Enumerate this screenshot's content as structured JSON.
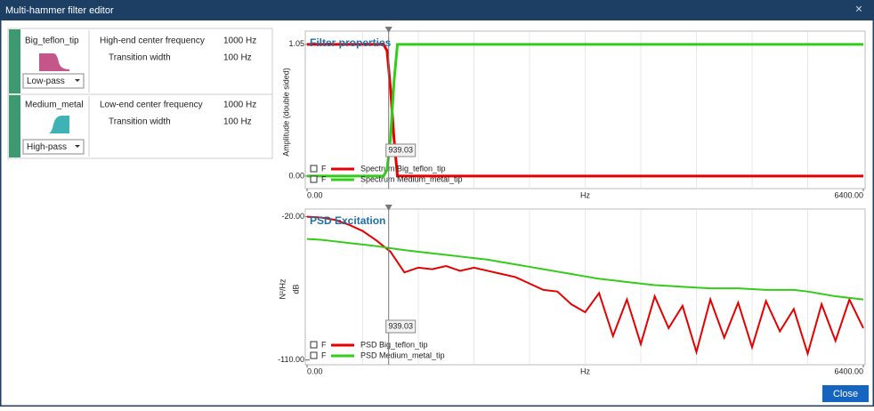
{
  "window": {
    "title": "Multi-hammer filter editor",
    "close_button": "Close"
  },
  "filters": [
    {
      "name": "Big_teflon_tip",
      "mode": "Low-pass",
      "params": [
        {
          "label": "High-end center frequency",
          "value": "1000 Hz"
        },
        {
          "label": "Transition width",
          "value": "100 Hz"
        }
      ]
    },
    {
      "name": "Medium_metal",
      "mode": "High-pass",
      "params": [
        {
          "label": "Low-end center frequency",
          "value": "1000 Hz"
        },
        {
          "label": "Transition width",
          "value": "100 Hz"
        }
      ]
    }
  ],
  "plots": [
    {
      "type": "line",
      "title": "Filter properties",
      "y_label": "Amplitude (double sided)",
      "x_label": "Hz",
      "xlim": [
        0,
        6400
      ],
      "ylim": [
        -0.1,
        1.12
      ],
      "xticks": [
        {
          "value": 0,
          "label": "0.00"
        },
        {
          "value": 6400,
          "label": "6400.00"
        }
      ],
      "yticks": [
        {
          "value": 1.05,
          "label": "1.05"
        },
        {
          "value": 0,
          "label": "0.00"
        }
      ],
      "cursor": 939.03,
      "x": [
        0,
        880,
        920,
        960,
        1000,
        1040,
        6400
      ],
      "series": [
        {
          "name": "Spectrum Big_teflon_tip",
          "toggle": "F",
          "color": "#e60000",
          "values": [
            1.05,
            1.05,
            1.0,
            0.7,
            0.3,
            0.0,
            0.0
          ]
        },
        {
          "name": "Spectrum Medium_metal_tip",
          "toggle": "F",
          "color": "#33cc1a",
          "values": [
            0.0,
            0.0,
            0.05,
            0.3,
            0.75,
            1.05,
            1.05
          ]
        }
      ]
    },
    {
      "type": "line",
      "title": "PSD Excitation",
      "y_label": "dB",
      "y_unit": "N²/Hz",
      "x_label": "Hz",
      "xlim": [
        0,
        6400
      ],
      "ylim": [
        -113,
        -18
      ],
      "xticks": [
        {
          "value": 0,
          "label": "0.00"
        },
        {
          "value": 6400,
          "label": "6400.00"
        }
      ],
      "yticks": [
        {
          "value": -20,
          "label": "-20.00"
        },
        {
          "value": -110,
          "label": "-110.00"
        }
      ],
      "cursor": 939.03,
      "x": [
        0,
        160,
        320,
        480,
        640,
        800,
        960,
        1120,
        1280,
        1440,
        1600,
        1760,
        1920,
        2080,
        2240,
        2400,
        2560,
        2720,
        2880,
        3040,
        3200,
        3360,
        3520,
        3680,
        3840,
        4000,
        4160,
        4320,
        4480,
        4640,
        4800,
        4960,
        5120,
        5280,
        5440,
        5600,
        5760,
        5920,
        6080,
        6240,
        6400
      ],
      "series": [
        {
          "name": "PSD Big_teflon_tip",
          "toggle": "F",
          "color": "#e60000",
          "values": [
            -20,
            -20.5,
            -22,
            -25,
            -29,
            -35,
            -42,
            -55,
            -52,
            -53,
            -51,
            -54,
            -52,
            -54,
            -56,
            -58,
            -62,
            -66,
            -67,
            -75,
            -80,
            -68,
            -95,
            -72,
            -100,
            -70,
            -90,
            -76,
            -105,
            -72,
            -96,
            -74,
            -102,
            -73,
            -92,
            -78,
            -106,
            -75,
            -98,
            -72,
            -90
          ]
        },
        {
          "name": "PSD Medium_metal_tip",
          "toggle": "F",
          "color": "#33cc1a",
          "values": [
            -34,
            -34.5,
            -35.5,
            -36.5,
            -37.5,
            -38.5,
            -39.8,
            -41,
            -42,
            -43,
            -44,
            -45,
            -46,
            -47,
            -48.5,
            -50,
            -51.5,
            -53,
            -54.5,
            -56,
            -57.5,
            -59,
            -60,
            -61,
            -62,
            -63,
            -63.5,
            -64,
            -64.5,
            -65,
            -65,
            -65,
            -65.5,
            -66,
            -66,
            -66,
            -67,
            -68.5,
            -70,
            -71,
            -72
          ]
        }
      ]
    }
  ]
}
